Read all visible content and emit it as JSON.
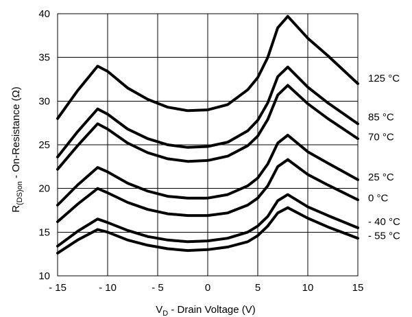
{
  "chart_data": {
    "type": "line",
    "title": "",
    "xlabel": {
      "main": "V",
      "sub": "D",
      "rest": " -  Drain Voltage (V)"
    },
    "ylabel": {
      "main": "R",
      "sub": "(DS)on",
      "rest": " -  On-Resistance (Ω)"
    },
    "xlim": [
      -15,
      15
    ],
    "ylim": [
      10,
      40
    ],
    "xticks": [
      -15,
      -10,
      -5,
      0,
      5,
      10,
      15
    ],
    "xtick_labels": [
      "- 15",
      "- 10",
      "- 5",
      "0",
      "5",
      "10",
      "15"
    ],
    "yticks": [
      10,
      15,
      20,
      25,
      30,
      35,
      40
    ],
    "ytick_labels": [
      "10",
      "15",
      "20",
      "25",
      "30",
      "35",
      "40"
    ],
    "grid": true,
    "x": [
      -15,
      -13,
      -11,
      -10,
      -8,
      -6,
      -4,
      -2,
      0,
      2,
      4,
      5,
      6,
      7,
      8,
      10,
      12,
      15
    ],
    "series": [
      {
        "name": "125 °C",
        "values": [
          28.0,
          31.2,
          34.0,
          33.4,
          31.5,
          30.2,
          29.3,
          28.9,
          29.0,
          29.6,
          31.3,
          32.7,
          35.0,
          38.4,
          39.7,
          37.2,
          35.2,
          32.0
        ]
      },
      {
        "name": "85 °C",
        "values": [
          23.6,
          26.5,
          29.1,
          28.5,
          26.8,
          25.7,
          25.0,
          24.7,
          24.8,
          25.3,
          26.6,
          27.8,
          29.8,
          32.8,
          33.9,
          31.6,
          29.8,
          27.4
        ]
      },
      {
        "name": "70 °C",
        "values": [
          22.2,
          24.9,
          27.4,
          26.8,
          25.2,
          24.1,
          23.4,
          23.1,
          23.2,
          23.7,
          24.9,
          26.0,
          27.9,
          30.7,
          31.8,
          29.7,
          28.0,
          25.7
        ]
      },
      {
        "name": "25 °C",
        "values": [
          18.1,
          20.4,
          22.4,
          21.9,
          20.6,
          19.7,
          19.1,
          18.9,
          18.9,
          19.3,
          20.3,
          21.2,
          22.8,
          25.2,
          26.1,
          24.2,
          22.9,
          21.0
        ]
      },
      {
        "name": "0 °C",
        "values": [
          16.2,
          18.2,
          20.0,
          19.5,
          18.4,
          17.6,
          17.1,
          16.9,
          16.9,
          17.2,
          18.1,
          18.9,
          20.3,
          22.5,
          23.3,
          21.6,
          20.4,
          18.7
        ]
      },
      {
        "name": "- 40 °C",
        "values": [
          13.4,
          15.1,
          16.5,
          16.1,
          15.2,
          14.5,
          14.1,
          13.9,
          14.0,
          14.3,
          15.0,
          15.7,
          16.8,
          18.6,
          19.3,
          17.9,
          16.9,
          15.5
        ]
      },
      {
        "name": "- 55 °C",
        "values": [
          12.6,
          14.1,
          15.3,
          15.0,
          14.1,
          13.5,
          13.1,
          12.9,
          13.0,
          13.3,
          13.9,
          14.6,
          15.7,
          17.2,
          17.8,
          16.6,
          15.6,
          14.3
        ]
      }
    ],
    "label_y": [
      32.6,
      28.2,
      25.9,
      21.3,
      18.9,
      16.2,
      14.6
    ]
  }
}
